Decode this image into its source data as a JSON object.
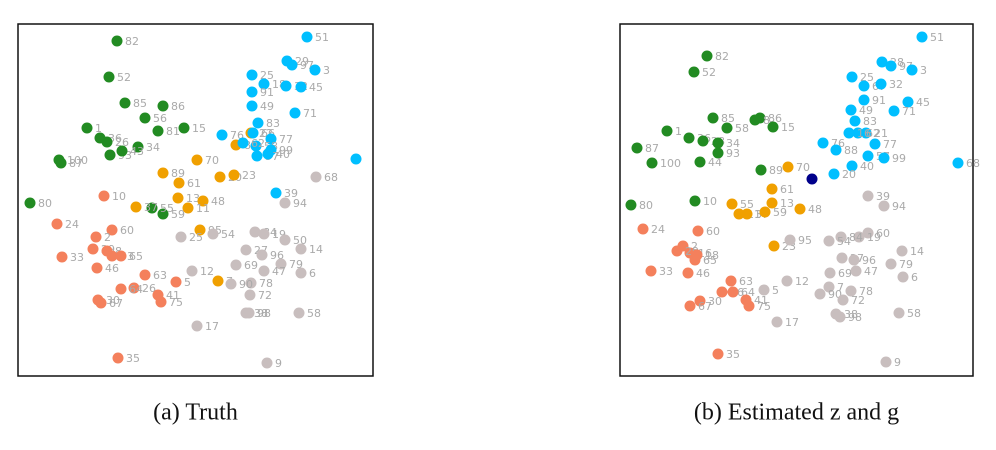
{
  "chart_data": [
    {
      "type": "scatter",
      "title": "(a) Truth",
      "xlim": [
        18,
        373
      ],
      "ylim": [
        376,
        24
      ],
      "series": [
        {
          "color": "#228b22",
          "x": [
            117,
            109,
            125,
            163,
            145,
            158,
            184,
            87,
            100,
            107,
            138,
            110,
            122,
            59,
            61,
            30,
            163,
            152
          ],
          "values": [
            41,
            77,
            103,
            106,
            118,
            131,
            128,
            128,
            138,
            142,
            147,
            155,
            151,
            160,
            163,
            203,
            214,
            208
          ],
          "point_labels": [
            82,
            52,
            85,
            86,
            56,
            81,
            15,
            1,
            36,
            26,
            34,
            93,
            43,
            100,
            87,
            80,
            59,
            55
          ]
        },
        {
          "color": "#f0a000",
          "x": [
            163,
            197,
            179,
            220,
            234,
            178,
            203,
            136,
            188,
            200,
            218,
            251,
            236
          ],
          "values": [
            173,
            160,
            183,
            177,
            175,
            198,
            201,
            207,
            208,
            230,
            281,
            133,
            145
          ],
          "point_labels": [
            89,
            70,
            61,
            20,
            23,
            13,
            48,
            37,
            11,
            95,
            7,
            22,
            88
          ]
        },
        {
          "color": "#00bfff",
          "x": [
            307,
            287,
            292,
            315,
            252,
            264,
            286,
            301,
            252,
            252,
            295,
            258,
            222,
            253,
            271,
            256,
            271,
            257,
            268,
            243,
            356,
            276
          ],
          "values": [
            37,
            61,
            65,
            70,
            75,
            84,
            86,
            87,
            92,
            106,
            113,
            123,
            135,
            133,
            139,
            146,
            150,
            156,
            154,
            143,
            159,
            193
          ],
          "point_labels": [
            51,
            29,
            97,
            3,
            25,
            18,
            32,
            45,
            91,
            49,
            71,
            83,
            76,
            66,
            77,
            58,
            99,
            57,
            40,
            62,
            null,
            39
          ]
        },
        {
          "color": "#c8bebe",
          "x": [
            316,
            285,
            255,
            264,
            285,
            181,
            213,
            301,
            246,
            262,
            236,
            281,
            264,
            301,
            192,
            251,
            231,
            250,
            197,
            246,
            249,
            299,
            267
          ],
          "values": [
            177,
            203,
            232,
            234,
            240,
            237,
            234,
            249,
            250,
            255,
            265,
            264,
            271,
            273,
            271,
            283,
            284,
            295,
            326,
            313,
            313,
            313,
            363
          ],
          "point_labels": [
            68,
            94,
            84,
            19,
            50,
            25,
            54,
            14,
            27,
            96,
            69,
            79,
            47,
            6,
            12,
            78,
            90,
            72,
            17,
            38,
            98,
            58,
            9
          ]
        },
        {
          "color": "#f4805c",
          "x": [
            104,
            57,
            112,
            96,
            93,
            107,
            62,
            112,
            121,
            97,
            145,
            176,
            134,
            121,
            158,
            161,
            98,
            101,
            118
          ],
          "values": [
            196,
            224,
            230,
            237,
            249,
            251,
            257,
            256,
            256,
            268,
            275,
            282,
            288,
            289,
            295,
            302,
            300,
            303,
            358
          ],
          "point_labels": [
            10,
            24,
            60,
            2,
            29,
            8,
            33,
            53,
            65,
            46,
            63,
            5,
            26,
            64,
            41,
            75,
            30,
            67,
            35
          ]
        }
      ]
    },
    {
      "type": "scatter",
      "title": "(b) Estimated z and g",
      "xlim": [
        620,
        973
      ],
      "ylim": [
        376,
        24
      ],
      "series": [
        {
          "color": "#228b22",
          "x": [
            707,
            694,
            713,
            760,
            727,
            755,
            773,
            667,
            689,
            703,
            718,
            718,
            637,
            652,
            700,
            761,
            631,
            695
          ],
          "values": [
            56,
            72,
            118,
            118,
            128,
            120,
            127,
            131,
            138,
            141,
            143,
            153,
            148,
            163,
            162,
            170,
            205,
            201
          ],
          "point_labels": [
            82,
            52,
            85,
            86,
            58,
            8,
            15,
            1,
            36,
            28,
            34,
            93,
            87,
            100,
            44,
            89,
            80,
            10
          ]
        },
        {
          "color": "#f0a000",
          "x": [
            788,
            772,
            774,
            772,
            800,
            732,
            739,
            747,
            765
          ],
          "values": [
            167,
            189,
            246,
            203,
            209,
            204,
            214,
            214,
            212
          ],
          "point_labels": [
            70,
            61,
            23,
            13,
            48,
            55,
            11,
            37,
            59
          ]
        },
        {
          "color": "#00008b",
          "x": [
            812
          ],
          "values": [
            179
          ],
          "point_labels": [
            null
          ]
        },
        {
          "color": "#00bfff",
          "x": [
            922,
            882,
            891,
            912,
            852,
            864,
            881,
            864,
            908,
            851,
            894,
            855,
            866,
            858,
            823,
            836,
            875,
            868,
            884,
            852,
            834,
            958,
            849
          ],
          "values": [
            37,
            62,
            66,
            70,
            77,
            86,
            84,
            100,
            102,
            110,
            111,
            121,
            133,
            133,
            143,
            150,
            144,
            156,
            158,
            166,
            174,
            163,
            133
          ],
          "point_labels": [
            51,
            28,
            97,
            3,
            25,
            67,
            32,
            91,
            45,
            49,
            71,
            83,
            21,
            62,
            76,
            88,
            77,
            57,
            99,
            40,
            20,
            68,
            16
          ]
        },
        {
          "color": "#c8bebe",
          "x": [
            868,
            884,
            868,
            859,
            841,
            829,
            790,
            902,
            842,
            854,
            830,
            856,
            891,
            903,
            787,
            764,
            829,
            820,
            851,
            843,
            777,
            836,
            840,
            899,
            886
          ],
          "values": [
            196,
            206,
            233,
            237,
            237,
            241,
            240,
            251,
            258,
            260,
            273,
            271,
            264,
            277,
            281,
            290,
            287,
            294,
            291,
            300,
            322,
            314,
            317,
            313,
            362
          ],
          "point_labels": [
            39,
            94,
            60,
            19,
            84,
            54,
            95,
            14,
            27,
            96,
            69,
            47,
            79,
            6,
            12,
            5,
            7,
            90,
            78,
            72,
            17,
            38,
            98,
            58,
            9
          ]
        },
        {
          "color": "#f4805c",
          "x": [
            698,
            643,
            683,
            690,
            677,
            697,
            695,
            651,
            688,
            731,
            722,
            733,
            700,
            690,
            746,
            749,
            718
          ],
          "values": [
            231,
            229,
            246,
            253,
            251,
            255,
            260,
            271,
            273,
            281,
            292,
            292,
            301,
            306,
            300,
            306,
            354
          ],
          "point_labels": [
            60,
            24,
            2,
            16,
            29,
            18,
            65,
            33,
            46,
            63,
            26,
            64,
            30,
            67,
            41,
            75,
            35
          ]
        }
      ]
    }
  ]
}
